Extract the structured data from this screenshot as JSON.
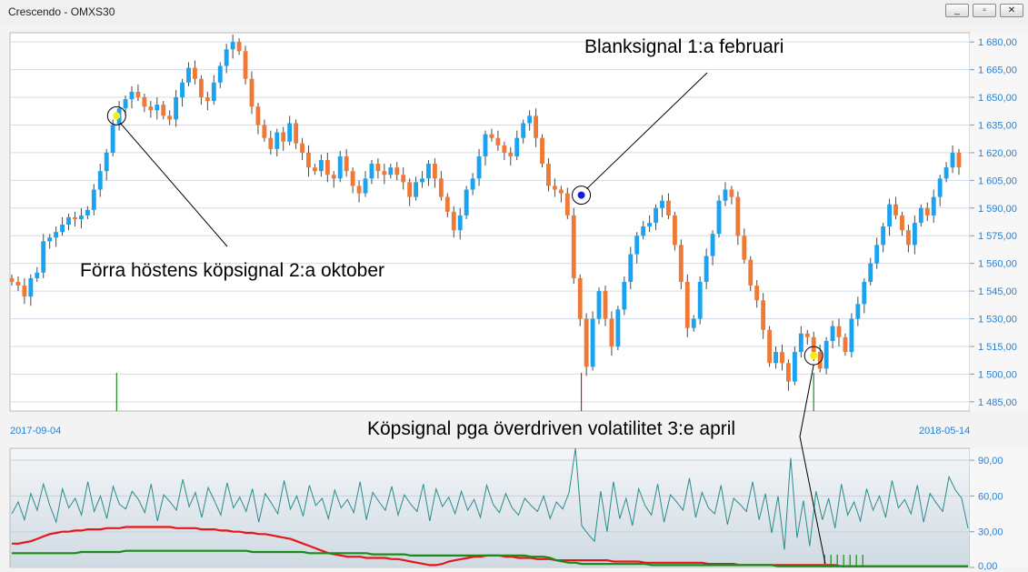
{
  "window": {
    "title": "Crescendo - OMXS30",
    "buttons": [
      "_",
      "▫",
      "✕"
    ]
  },
  "dates": {
    "start": "2017-09-04",
    "end": "2018-05-14"
  },
  "annotations": {
    "buy_oct": "Förra höstens köpsignal 2:a oktober",
    "short_feb": "Blanksignal 1:a februari",
    "buy_apr": "Köpsignal pga överdriven volatilitet 3:e april"
  },
  "colors": {
    "up": "#1aa3f0",
    "down": "#f07a35",
    "red_line": "#e8161a",
    "green_line": "#1a8c1a",
    "teal_line": "#2a8c8c",
    "buy_marker": "#f2ee1a",
    "short_marker": "#1a1ad8"
  },
  "chart_data": [
    {
      "type": "candlestick",
      "title": "OMXS30",
      "x_range": [
        "2017-09-04",
        "2018-05-14"
      ],
      "ylim": [
        1480,
        1685
      ],
      "y_ticks": [
        "1 485,00",
        "1 500,00",
        "1 515,00",
        "1 530,00",
        "1 545,00",
        "1 560,00",
        "1 575,00",
        "1 590,00",
        "1 605,00",
        "1 620,00",
        "1 635,00",
        "1 650,00",
        "1 665,00",
        "1 680,00"
      ],
      "grid": true,
      "close": [
        1550,
        1548,
        1542,
        1552,
        1555,
        1572,
        1574,
        1577,
        1581,
        1585,
        1584,
        1586,
        1589,
        1600,
        1610,
        1620,
        1635,
        1644,
        1649,
        1653,
        1650,
        1645,
        1643,
        1646,
        1640,
        1638,
        1650,
        1658,
        1666,
        1660,
        1650,
        1648,
        1658,
        1667,
        1676,
        1680,
        1675,
        1660,
        1645,
        1635,
        1628,
        1622,
        1631,
        1626,
        1636,
        1625,
        1620,
        1612,
        1610,
        1616,
        1608,
        1606,
        1618,
        1610,
        1602,
        1598,
        1606,
        1614,
        1610,
        1608,
        1612,
        1608,
        1604,
        1596,
        1604,
        1606,
        1614,
        1606,
        1596,
        1588,
        1578,
        1586,
        1600,
        1606,
        1618,
        1630,
        1628,
        1624,
        1620,
        1618,
        1628,
        1636,
        1640,
        1628,
        1614,
        1602,
        1600,
        1598,
        1586,
        1552,
        1530,
        1504,
        1530,
        1545,
        1530,
        1515,
        1535,
        1550,
        1565,
        1575,
        1580,
        1582,
        1590,
        1594,
        1586,
        1570,
        1550,
        1525,
        1530,
        1550,
        1564,
        1576,
        1594,
        1600,
        1596,
        1575,
        1562,
        1548,
        1540,
        1524,
        1506,
        1512,
        1506,
        1496,
        1512,
        1522,
        1520,
        1512,
        1503,
        1518,
        1526,
        1520,
        1512,
        1530,
        1538,
        1550,
        1560,
        1570,
        1580,
        1592,
        1586,
        1578,
        1570,
        1582,
        1590,
        1586,
        1596,
        1606,
        1612,
        1620,
        1612
      ],
      "signals": [
        {
          "label": "buy",
          "date": "2017-10-02",
          "value": 1640
        },
        {
          "label": "short",
          "date": "2018-02-01",
          "value": 1597
        },
        {
          "label": "buy",
          "date": "2018-04-03",
          "value": 1510
        }
      ]
    },
    {
      "type": "line",
      "ylim": [
        0,
        100
      ],
      "y_ticks": [
        "0,00",
        "30,00",
        "60,00",
        "90,00"
      ],
      "grid": true,
      "series": [
        {
          "values": [
            45,
            55,
            40,
            62,
            48,
            70,
            52,
            38,
            66,
            50,
            58,
            44,
            72,
            47,
            60,
            41,
            68,
            53,
            49,
            64,
            57,
            46,
            70,
            39,
            61,
            55,
            48,
            74,
            51,
            63,
            42,
            67,
            56,
            44,
            71,
            50,
            59,
            47,
            66,
            38,
            62,
            54,
            45,
            73,
            49,
            60,
            43,
            69,
            52,
            58,
            41,
            65,
            50,
            57,
            46,
            72,
            40,
            63,
            55,
            48,
            68,
            44,
            61,
            53,
            47,
            70,
            39,
            66,
            51,
            59,
            45,
            64,
            48,
            57,
            42,
            69,
            53,
            46,
            62,
            50,
            44,
            58,
            52,
            47,
            60,
            41,
            55,
            49,
            63,
            100,
            35,
            28,
            22,
            64,
            30,
            72,
            41,
            58,
            35,
            66,
            52,
            44,
            70,
            38,
            61,
            55,
            48,
            75,
            42,
            63,
            50,
            45,
            69,
            36,
            58,
            53,
            47,
            72,
            40,
            62,
            29,
            60,
            15,
            92,
            25,
            56,
            18,
            64,
            40,
            58,
            33,
            70,
            44,
            55,
            39,
            66,
            48,
            60,
            42,
            73,
            50,
            57,
            45,
            69,
            38,
            62,
            54,
            47,
            76,
            65,
            58,
            33
          ]
        },
        {
          "values": [
            20,
            20,
            21,
            22,
            24,
            26,
            28,
            29,
            30,
            30,
            31,
            31,
            32,
            32,
            32,
            33,
            33,
            33,
            34,
            34,
            34,
            34,
            34,
            34,
            34,
            34,
            33,
            33,
            33,
            33,
            32,
            32,
            32,
            31,
            31,
            30,
            30,
            29,
            29,
            28,
            28,
            27,
            26,
            25,
            24,
            22,
            20,
            18,
            16,
            14,
            12,
            11,
            10,
            9,
            9,
            9,
            8,
            8,
            8,
            8,
            7,
            7,
            6,
            5,
            4,
            3,
            2,
            2,
            3,
            5,
            6,
            7,
            8,
            9,
            9,
            10,
            10,
            10,
            9,
            9,
            8,
            8,
            8,
            7,
            7,
            7,
            6,
            6,
            6,
            6,
            6,
            6,
            6,
            6,
            6,
            5,
            5,
            5,
            5,
            5,
            4,
            4,
            4,
            4,
            4,
            4,
            4,
            4,
            4,
            4,
            3,
            3,
            3,
            3,
            3,
            2,
            2,
            2,
            2,
            2,
            2,
            2,
            2,
            2,
            2,
            2,
            2,
            2,
            2,
            2,
            2,
            1,
            1,
            1,
            1,
            1,
            1,
            1,
            1,
            1,
            1,
            1,
            1,
            1,
            1,
            1,
            1,
            1,
            1,
            1,
            1,
            1
          ]
        },
        {
          "values": [
            12,
            12,
            12,
            12,
            12,
            12,
            12,
            12,
            12,
            12,
            12,
            13,
            13,
            13,
            13,
            13,
            13,
            13,
            14,
            14,
            14,
            14,
            14,
            14,
            14,
            14,
            14,
            14,
            14,
            14,
            14,
            14,
            14,
            14,
            14,
            14,
            14,
            14,
            13,
            13,
            13,
            13,
            13,
            13,
            13,
            13,
            13,
            12,
            12,
            12,
            12,
            12,
            12,
            12,
            12,
            12,
            12,
            11,
            11,
            11,
            11,
            11,
            11,
            10,
            10,
            10,
            10,
            10,
            10,
            10,
            10,
            10,
            10,
            10,
            10,
            10,
            10,
            10,
            10,
            10,
            10,
            10,
            9,
            9,
            9,
            8,
            6,
            5,
            4,
            4,
            3,
            3,
            3,
            3,
            3,
            3,
            3,
            3,
            3,
            3,
            3,
            2,
            2,
            2,
            2,
            2,
            2,
            2,
            2,
            2,
            2,
            2,
            2,
            2,
            2,
            2,
            2,
            2,
            2,
            2,
            2,
            1,
            1,
            1,
            1,
            1,
            1,
            1,
            1,
            1,
            1,
            1,
            1,
            1,
            1,
            1,
            1,
            1,
            1,
            1,
            1,
            1,
            1,
            1,
            1,
            1,
            1,
            1,
            1,
            1,
            1,
            1
          ]
        }
      ]
    }
  ]
}
